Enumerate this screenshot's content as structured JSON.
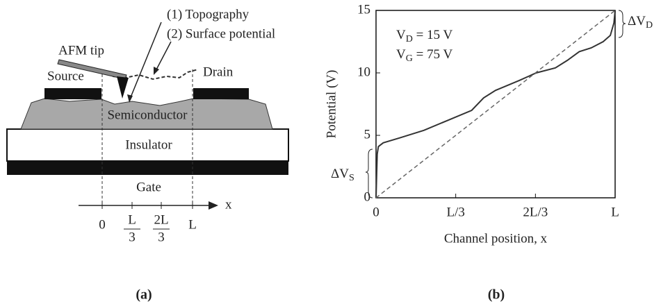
{
  "diagram": {
    "label": "(a)",
    "annotations": [
      "(1) Topography",
      "(2) Surface potential",
      "AFM tip"
    ],
    "electrodes": [
      "Source",
      "Drain"
    ],
    "layers": [
      "Semiconductor",
      "Insulator",
      "Gate"
    ],
    "axis": {
      "label": "x",
      "ticks": [
        {
          "main": "0"
        },
        {
          "num": "L",
          "den": "3"
        },
        {
          "num": "2L",
          "den": "3"
        },
        {
          "main": "L"
        }
      ]
    }
  },
  "chart_data": {
    "type": "line",
    "label": "(b)",
    "xlabel": "Channel position, x",
    "ylabel": "Potential (V)",
    "xlim": [
      0,
      1
    ],
    "xticks": [
      0,
      {
        "value": 0.3333,
        "label": "L/3"
      },
      {
        "value": 0.6667,
        "label": "2L/3"
      },
      {
        "value": 1,
        "label": "L"
      }
    ],
    "ylim": [
      0,
      15
    ],
    "yticks": [
      0,
      5,
      10,
      15
    ],
    "annotations": [
      {
        "text": "V",
        "sub": "D",
        "rest": " = 15 V"
      },
      {
        "text": "V",
        "sub": "G",
        "rest": " = 75 V"
      },
      {
        "text": "ΔV",
        "sub": "D"
      },
      {
        "text": "ΔV",
        "sub": "S"
      }
    ],
    "series": [
      {
        "color": "#333333",
        "style": "solid",
        "x": [
          0,
          0.005,
          0.01,
          0.03,
          0.1,
          0.2,
          0.3,
          0.4,
          0.45,
          0.5,
          0.6,
          0.67,
          0.75,
          0.8,
          0.85,
          0.9,
          0.95,
          0.98,
          0.995,
          1
        ],
        "values": [
          0,
          3.5,
          4.1,
          4.4,
          4.8,
          5.4,
          6.2,
          7.0,
          8.0,
          8.6,
          9.4,
          10.0,
          10.4,
          11.0,
          11.7,
          12.0,
          12.5,
          13.0,
          14.0,
          15
        ]
      },
      {
        "color": "#666666",
        "style": "dashed",
        "x": [
          0,
          1
        ],
        "values": [
          0,
          15
        ]
      }
    ]
  }
}
